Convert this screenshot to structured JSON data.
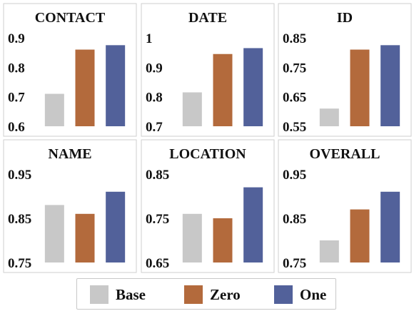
{
  "chart_data": [
    {
      "type": "bar",
      "title": "CONTACT",
      "categories": [
        "Base",
        "Zero",
        "One"
      ],
      "values": [
        0.71,
        0.86,
        0.875
      ],
      "ylim": [
        0.6,
        0.9
      ],
      "yticks": [
        "0.6",
        "0.7",
        "0.8",
        "0.9"
      ]
    },
    {
      "type": "bar",
      "title": "DATE",
      "categories": [
        "Base",
        "Zero",
        "One"
      ],
      "values": [
        0.815,
        0.945,
        0.965
      ],
      "ylim": [
        0.7,
        1.0
      ],
      "yticks": [
        "0.7",
        "0.8",
        "0.9",
        "1"
      ]
    },
    {
      "type": "bar",
      "title": "ID",
      "categories": [
        "Base",
        "Zero",
        "One"
      ],
      "values": [
        0.61,
        0.81,
        0.825
      ],
      "ylim": [
        0.55,
        0.85
      ],
      "yticks": [
        "0.55",
        "0.65",
        "0.75",
        "0.85"
      ]
    },
    {
      "type": "bar",
      "title": "NAME",
      "categories": [
        "Base",
        "Zero",
        "One"
      ],
      "values": [
        0.88,
        0.86,
        0.91
      ],
      "ylim": [
        0.75,
        0.95
      ],
      "yticks": [
        "0.75",
        "0.85",
        "0.95"
      ]
    },
    {
      "type": "bar",
      "title": "LOCATION",
      "categories": [
        "Base",
        "Zero",
        "One"
      ],
      "values": [
        0.76,
        0.75,
        0.82
      ],
      "ylim": [
        0.65,
        0.85
      ],
      "yticks": [
        "0.65",
        "0.75",
        "0.85"
      ]
    },
    {
      "type": "bar",
      "title": "OVERALL",
      "categories": [
        "Base",
        "Zero",
        "One"
      ],
      "values": [
        0.8,
        0.87,
        0.91
      ],
      "ylim": [
        0.75,
        0.95
      ],
      "yticks": [
        "0.75",
        "0.85",
        "0.95"
      ]
    }
  ],
  "legend": [
    {
      "label": "Base",
      "color": "#c8c8c8"
    },
    {
      "label": "Zero",
      "color": "#b36a3c"
    },
    {
      "label": "One",
      "color": "#52619a"
    }
  ],
  "grid": false,
  "legend_placement": "bottom"
}
